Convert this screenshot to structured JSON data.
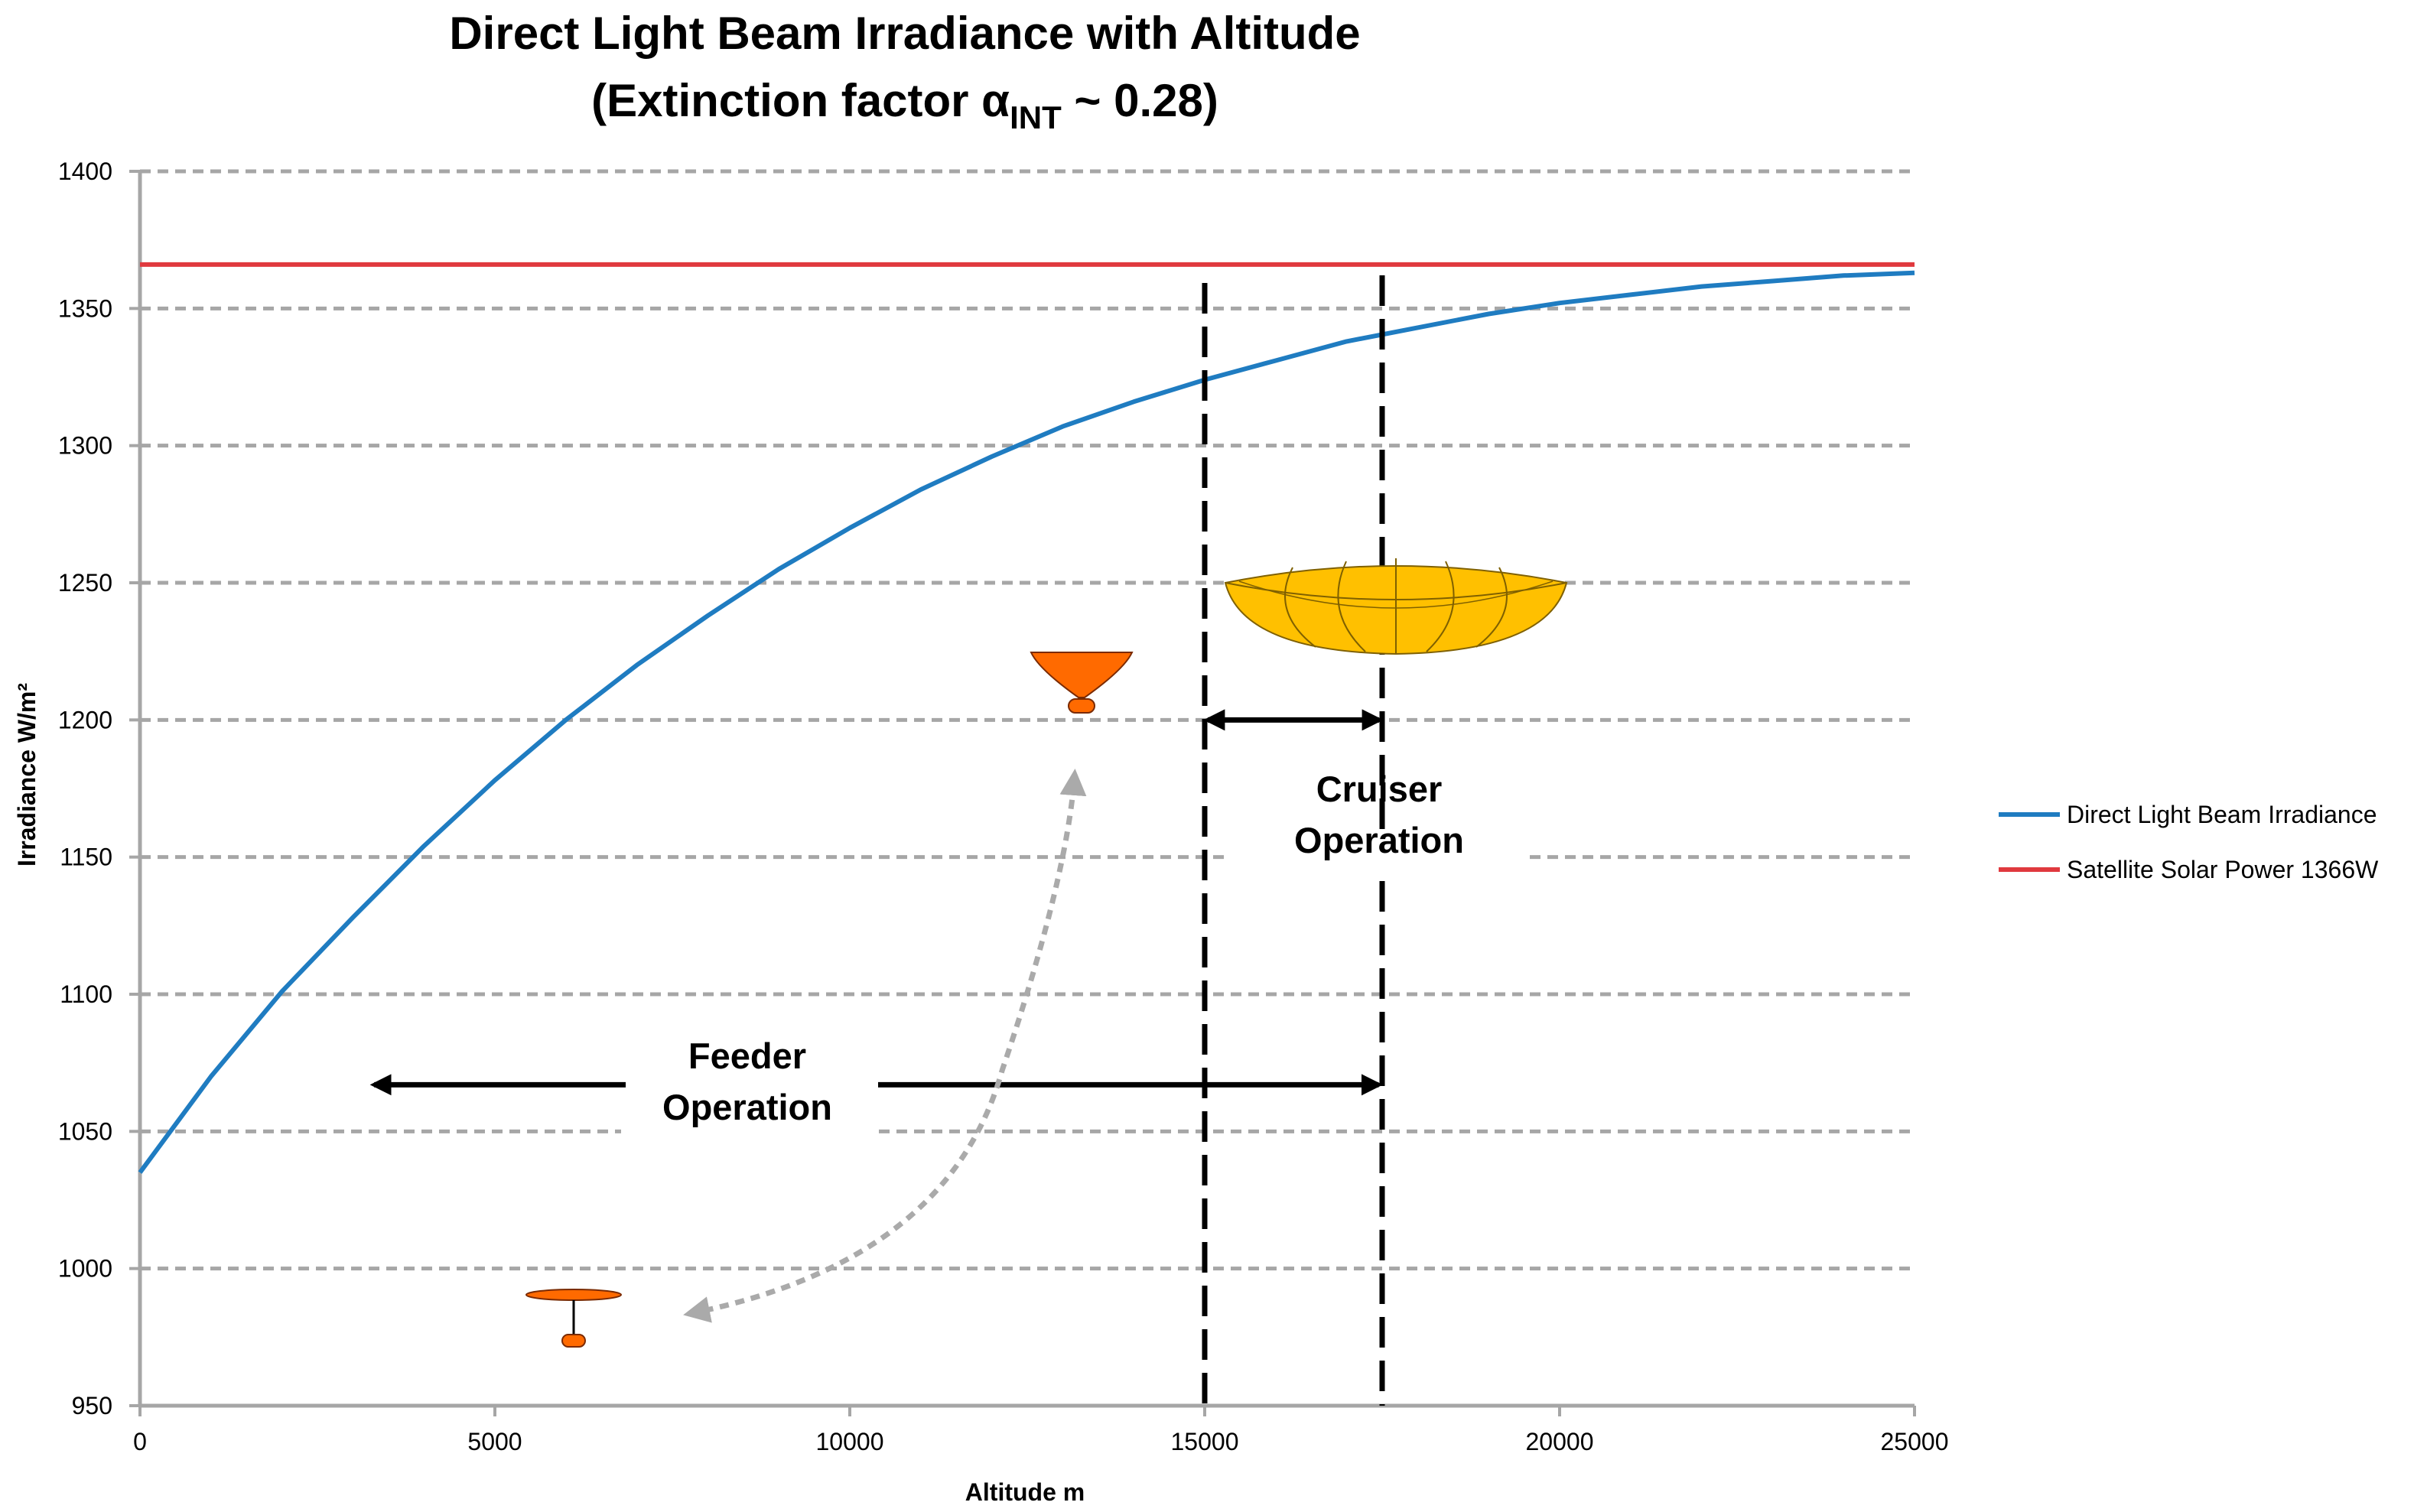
{
  "chart_data": {
    "type": "line",
    "title_line1": "Direct Light Beam Irradiance with Altitude",
    "title_line2_prefix": "(Extinction factor α",
    "title_line2_sub": "INT",
    "title_line2_suffix": " ~ 0.28)",
    "xlabel": "Altitude m",
    "ylabel": "Irradiance W/m²",
    "xlim": [
      0,
      25000
    ],
    "ylim": [
      950,
      1400
    ],
    "xticks": [
      0,
      5000,
      10000,
      15000,
      20000,
      25000
    ],
    "yticks": [
      950,
      1000,
      1050,
      1100,
      1150,
      1200,
      1250,
      1300,
      1350,
      1400
    ],
    "grid": "horizontal dashed",
    "legend_position": "right",
    "series": [
      {
        "name": "Direct Light Beam Irradiance",
        "color": "#1f7cc1",
        "x": [
          0,
          1000,
          2000,
          3000,
          4000,
          5000,
          6000,
          7000,
          8000,
          9000,
          10000,
          11000,
          12000,
          13000,
          14000,
          15000,
          16000,
          17000,
          18000,
          19000,
          20000,
          21000,
          22000,
          23000,
          24000,
          25000
        ],
        "y": [
          1035,
          1070,
          1101,
          1128,
          1154,
          1178,
          1200,
          1220,
          1238,
          1255,
          1270,
          1284,
          1296,
          1307,
          1316,
          1324,
          1331,
          1338,
          1343,
          1348,
          1352,
          1355,
          1358,
          1360,
          1362,
          1363
        ]
      },
      {
        "name": "Satellite Solar Power 1366W",
        "color": "#e0393e",
        "x": [
          0,
          25000
        ],
        "y": [
          1366,
          1366
        ]
      }
    ],
    "annotations": {
      "cruiser_line1": "Cruiser",
      "cruiser_line2": "Operation",
      "feeder_line1": "Feeder",
      "feeder_line2": "Operation",
      "cruiser_bounds_x": [
        15000,
        17500
      ],
      "feeder_arrow_y": 1067,
      "feeder_arrow_x": [
        3300,
        17450
      ],
      "cruiser_arrow_y": 1200
    }
  }
}
